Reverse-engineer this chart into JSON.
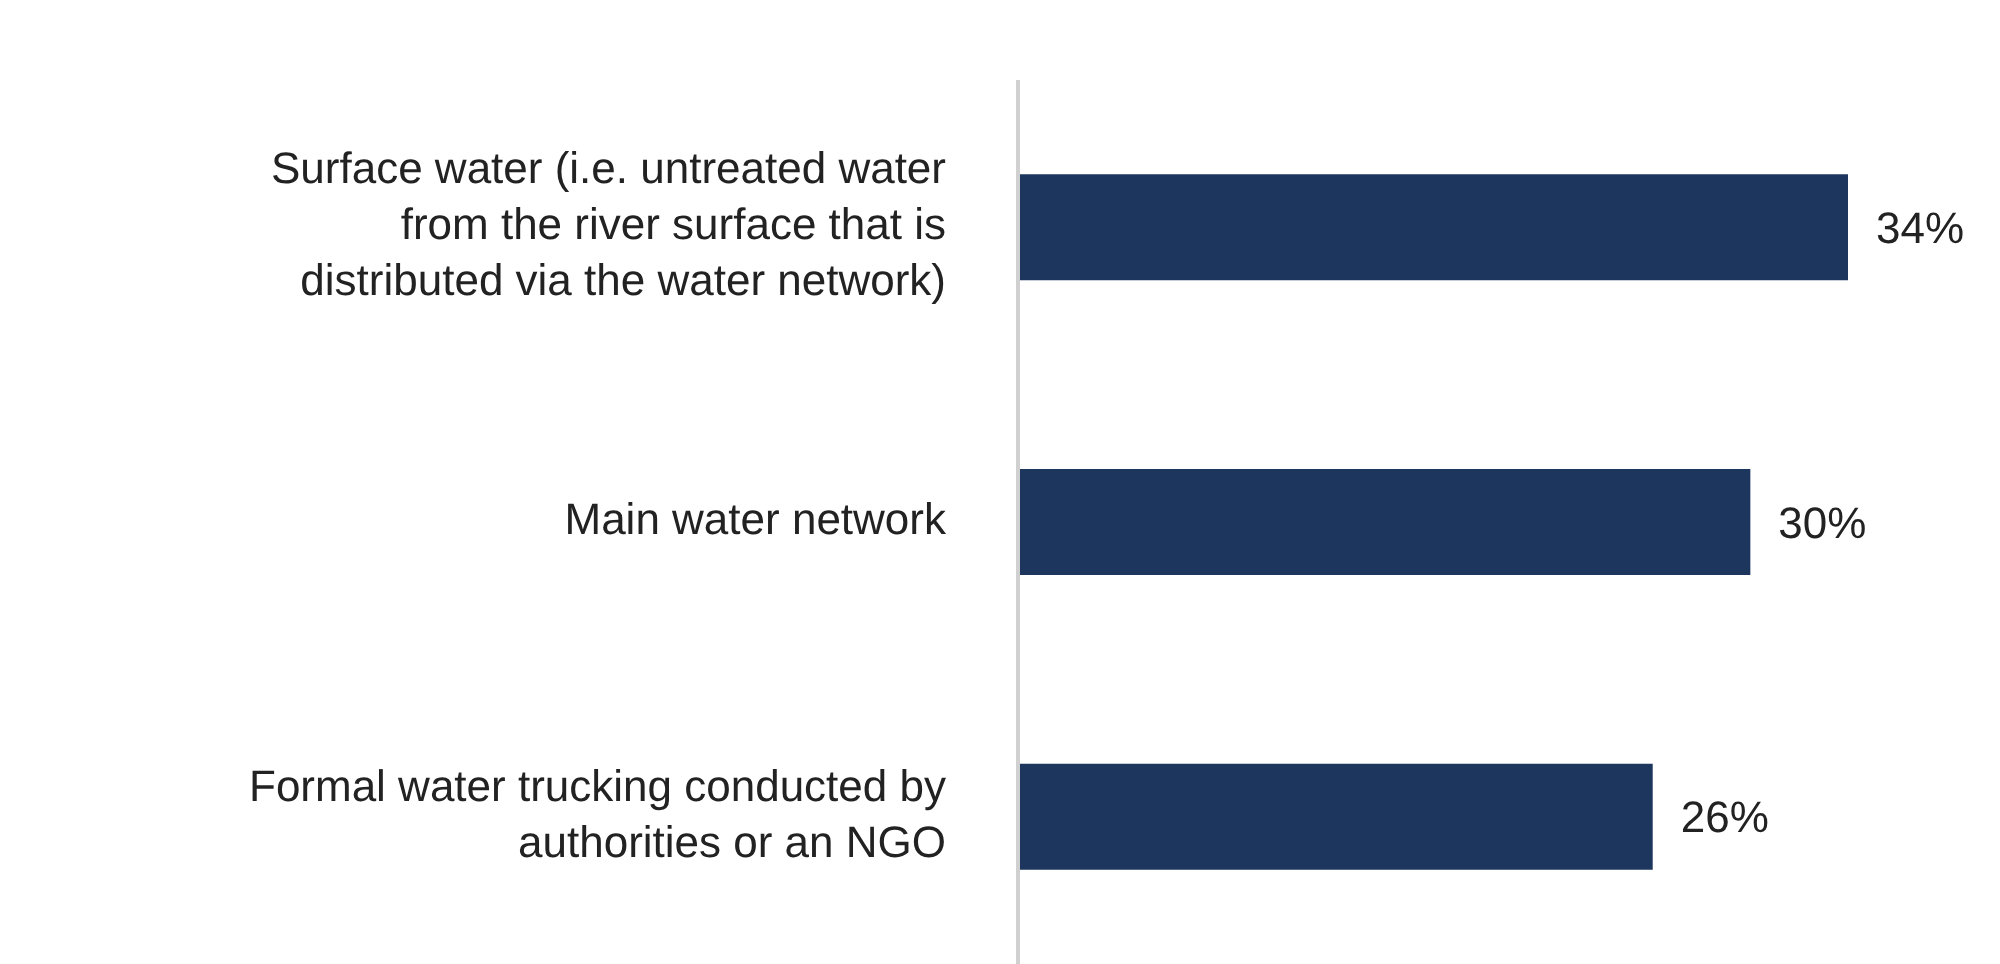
{
  "chart_data": {
    "type": "bar",
    "orientation": "horizontal",
    "categories": [
      "Surface water (i.e. untreated water from the river surface that is distributed via the water network)",
      "Main water network",
      "Formal water trucking conducted by authorities or an NGO"
    ],
    "values": [
      34,
      30,
      26
    ],
    "value_labels": [
      "34%",
      "30%",
      "26%"
    ],
    "color": "#1c365e",
    "grid": false,
    "legend": false
  }
}
